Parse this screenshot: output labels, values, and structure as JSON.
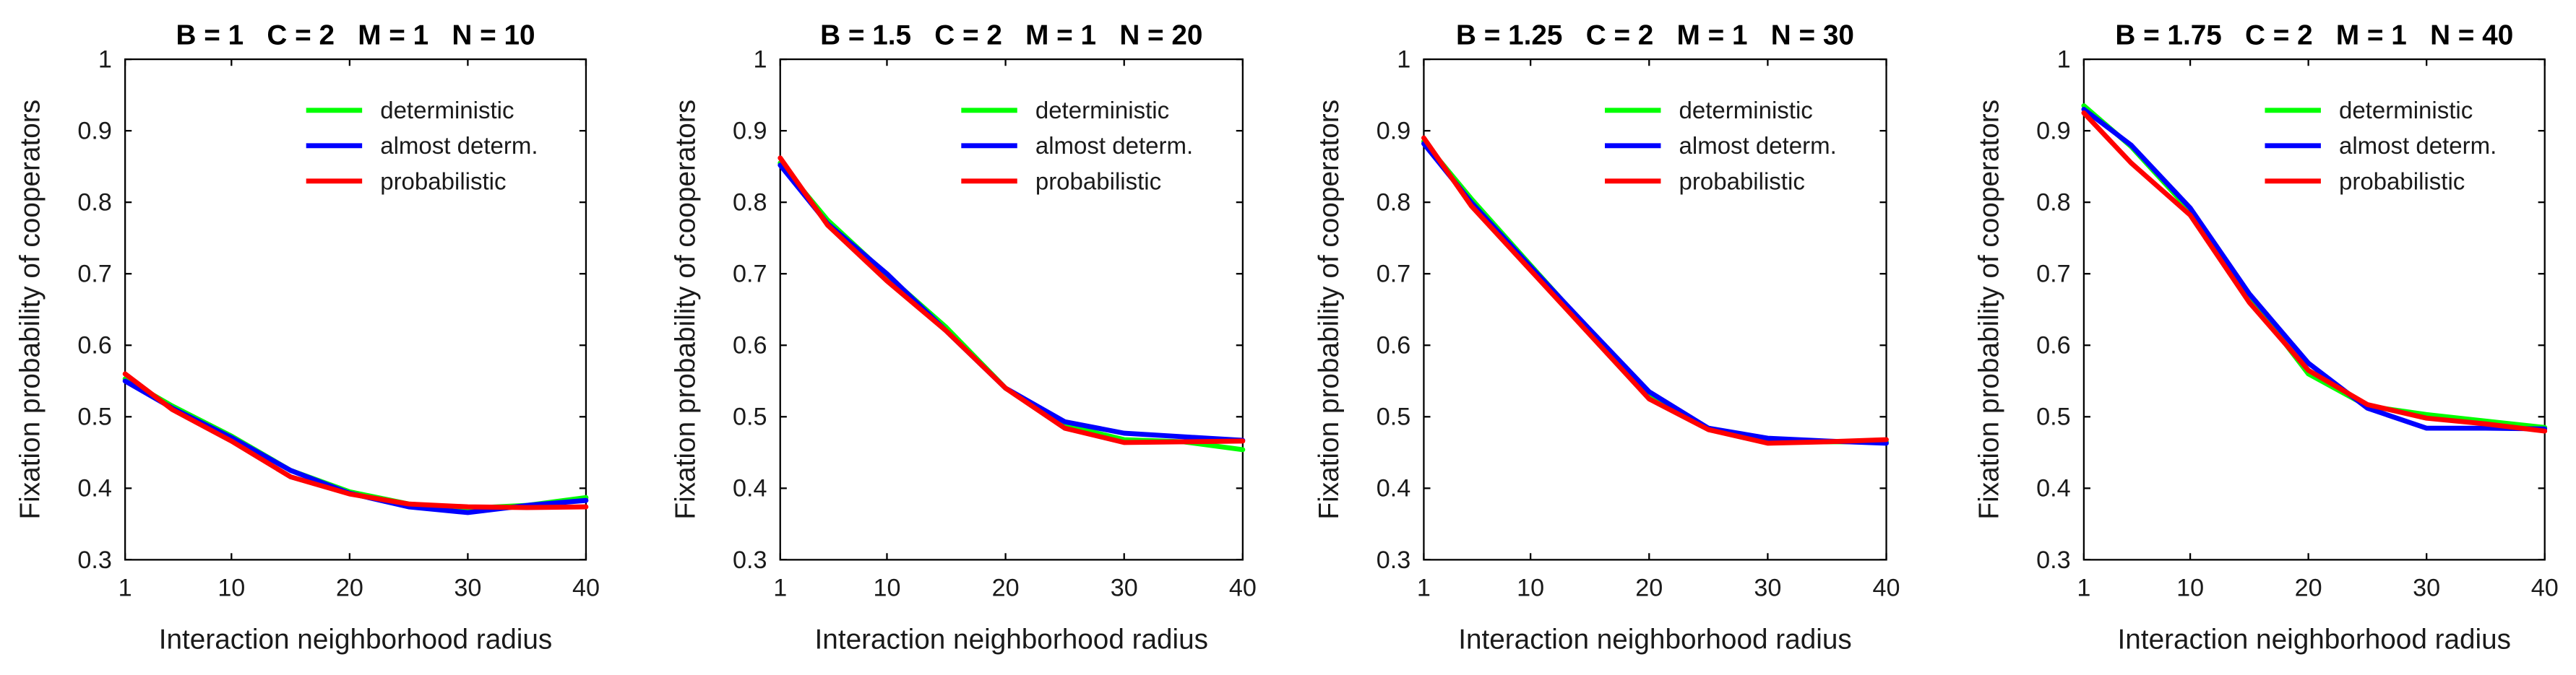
{
  "chart_data": [
    {
      "type": "line",
      "title": "B = 1   C = 2   M = 1   N = 10",
      "xlabel": "Interaction neighborhood radius",
      "ylabel": "Fixation probability of cooperators",
      "xlim": [
        1,
        40
      ],
      "ylim": [
        0.3,
        1
      ],
      "xticks": [
        1,
        10,
        20,
        30,
        40
      ],
      "yticks": [
        "0.3",
        "0.4",
        "0.5",
        "0.6",
        "0.7",
        "0.8",
        "0.9",
        "1"
      ],
      "legend_position": "top-right",
      "x": [
        1,
        5,
        10,
        15,
        20,
        25,
        30,
        35,
        40
      ],
      "series": [
        {
          "name": "deterministic",
          "color": "#00ff00",
          "values": [
            0.553,
            0.515,
            0.473,
            0.425,
            0.395,
            0.378,
            0.372,
            0.376,
            0.387
          ]
        },
        {
          "name": "almost determ.",
          "color": "#0000ff",
          "values": [
            0.55,
            0.512,
            0.471,
            0.425,
            0.393,
            0.374,
            0.366,
            0.376,
            0.383
          ]
        },
        {
          "name": "probabilistic",
          "color": "#ff0000",
          "values": [
            0.56,
            0.51,
            0.466,
            0.416,
            0.392,
            0.378,
            0.374,
            0.373,
            0.374
          ]
        }
      ]
    },
    {
      "type": "line",
      "title": "B = 1.5   C = 2   M = 1   N = 20",
      "xlabel": "Interaction neighborhood radius",
      "ylabel": "Fixation probability of cooperators",
      "xlim": [
        1,
        40
      ],
      "ylim": [
        0.3,
        1
      ],
      "xticks": [
        1,
        10,
        20,
        30,
        40
      ],
      "yticks": [
        "0.3",
        "0.4",
        "0.5",
        "0.6",
        "0.7",
        "0.8",
        "0.9",
        "1"
      ],
      "legend_position": "top-right",
      "x": [
        1,
        5,
        10,
        15,
        20,
        25,
        30,
        35,
        40
      ],
      "series": [
        {
          "name": "deterministic",
          "color": "#00ff00",
          "values": [
            0.855,
            0.775,
            0.698,
            0.625,
            0.54,
            0.488,
            0.468,
            0.465,
            0.454
          ]
        },
        {
          "name": "almost determ.",
          "color": "#0000ff",
          "values": [
            0.852,
            0.77,
            0.7,
            0.62,
            0.54,
            0.493,
            0.477,
            0.472,
            0.467
          ]
        },
        {
          "name": "probabilistic",
          "color": "#ff0000",
          "values": [
            0.862,
            0.768,
            0.69,
            0.62,
            0.54,
            0.484,
            0.464,
            0.465,
            0.466
          ]
        }
      ]
    },
    {
      "type": "line",
      "title": "B = 1.25   C = 2   M = 1   N = 30",
      "xlabel": "Interaction neighborhood radius",
      "ylabel": "Fixation probability of cooperators",
      "xlim": [
        1,
        40
      ],
      "ylim": [
        0.3,
        1
      ],
      "xticks": [
        1,
        10,
        20,
        30,
        40
      ],
      "yticks": [
        "0.3",
        "0.4",
        "0.5",
        "0.6",
        "0.7",
        "0.8",
        "0.9",
        "1"
      ],
      "legend_position": "top-right",
      "x": [
        1,
        5,
        10,
        15,
        20,
        25,
        30,
        35,
        40
      ],
      "series": [
        {
          "name": "deterministic",
          "color": "#00ff00",
          "values": [
            0.885,
            0.805,
            0.712,
            0.62,
            0.528,
            0.484,
            0.466,
            0.465,
            0.465
          ]
        },
        {
          "name": "almost determ.",
          "color": "#0000ff",
          "values": [
            0.882,
            0.8,
            0.71,
            0.622,
            0.535,
            0.484,
            0.47,
            0.466,
            0.463
          ]
        },
        {
          "name": "probabilistic",
          "color": "#ff0000",
          "values": [
            0.89,
            0.795,
            0.705,
            0.615,
            0.525,
            0.482,
            0.463,
            0.465,
            0.468
          ]
        }
      ]
    },
    {
      "type": "line",
      "title": "B = 1.75   C = 2   M = 1   N = 40",
      "xlabel": "Interaction neighborhood radius",
      "ylabel": "Fixation probability of cooperators",
      "xlim": [
        1,
        40
      ],
      "ylim": [
        0.3,
        1
      ],
      "xticks": [
        1,
        10,
        20,
        30,
        40
      ],
      "yticks": [
        "0.3",
        "0.4",
        "0.5",
        "0.6",
        "0.7",
        "0.8",
        "0.9",
        "1"
      ],
      "legend_position": "top-right",
      "x": [
        1,
        5,
        10,
        15,
        20,
        25,
        30,
        35,
        40
      ],
      "series": [
        {
          "name": "deterministic",
          "color": "#00ff00",
          "values": [
            0.935,
            0.878,
            0.788,
            0.668,
            0.56,
            0.515,
            0.503,
            0.494,
            0.485
          ]
        },
        {
          "name": "almost determ.",
          "color": "#0000ff",
          "values": [
            0.93,
            0.88,
            0.792,
            0.672,
            0.575,
            0.512,
            0.484,
            0.484,
            0.483
          ]
        },
        {
          "name": "probabilistic",
          "color": "#ff0000",
          "values": [
            0.925,
            0.855,
            0.782,
            0.66,
            0.565,
            0.517,
            0.498,
            0.49,
            0.48
          ]
        }
      ]
    }
  ]
}
